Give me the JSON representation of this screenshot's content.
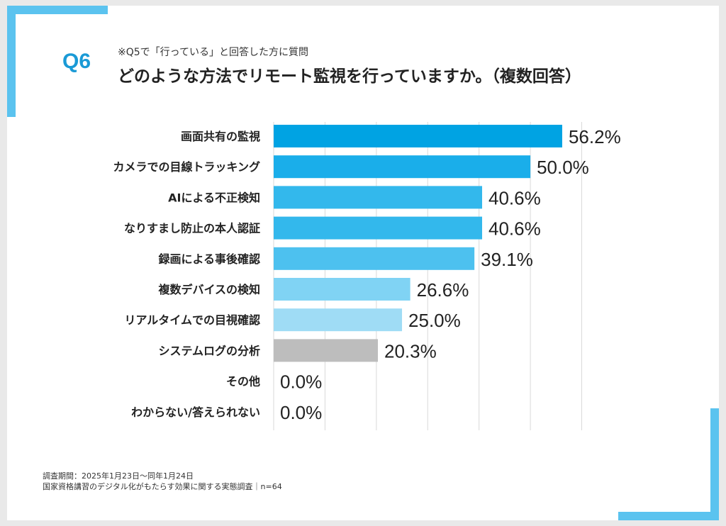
{
  "question": {
    "number": "Q6",
    "note": "※Q5で「行っている」と回答した方に質問",
    "title": "どのような方法でリモート監視を行っていますか。（複数回答）"
  },
  "footer": {
    "period": "調査期間：2025年1月23日～同年1月24日",
    "survey": "国家資格講習のデジタル化がもたらす効果に関する実態調査｜n=64"
  },
  "colors": {
    "accent": "#5bc3ef",
    "q_number": "#1a9ad6",
    "bars": [
      "#00a3e3",
      "#1aaeea",
      "#33b8ec",
      "#33b8ec",
      "#4dc1ef",
      "#80d3f4",
      "#9fdcf5",
      "#bdbdbd",
      "#bdbdbd",
      "#bdbdbd"
    ],
    "grid": "#d9d9d9"
  },
  "chart_data": {
    "type": "bar",
    "orientation": "horizontal",
    "categories": [
      "画面共有の監視",
      "カメラでの目線トラッキング",
      "AIによる不正検知",
      "なりすまし防止の本人認証",
      "録画による事後確認",
      "複数デバイスの検知",
      "リアルタイムでの目視確認",
      "システムログの分析",
      "その他",
      "わからない/答えられない"
    ],
    "values": [
      56.2,
      50.0,
      40.6,
      40.6,
      39.1,
      26.6,
      25.0,
      20.3,
      0.0,
      0.0
    ],
    "value_labels": [
      "56.2%",
      "50.0%",
      "40.6%",
      "40.6%",
      "39.1%",
      "26.6%",
      "25.0%",
      "20.3%",
      "0.0%",
      "0.0%"
    ],
    "xlim": [
      0,
      60
    ],
    "grid": true,
    "title": "",
    "xlabel": "",
    "ylabel": ""
  }
}
